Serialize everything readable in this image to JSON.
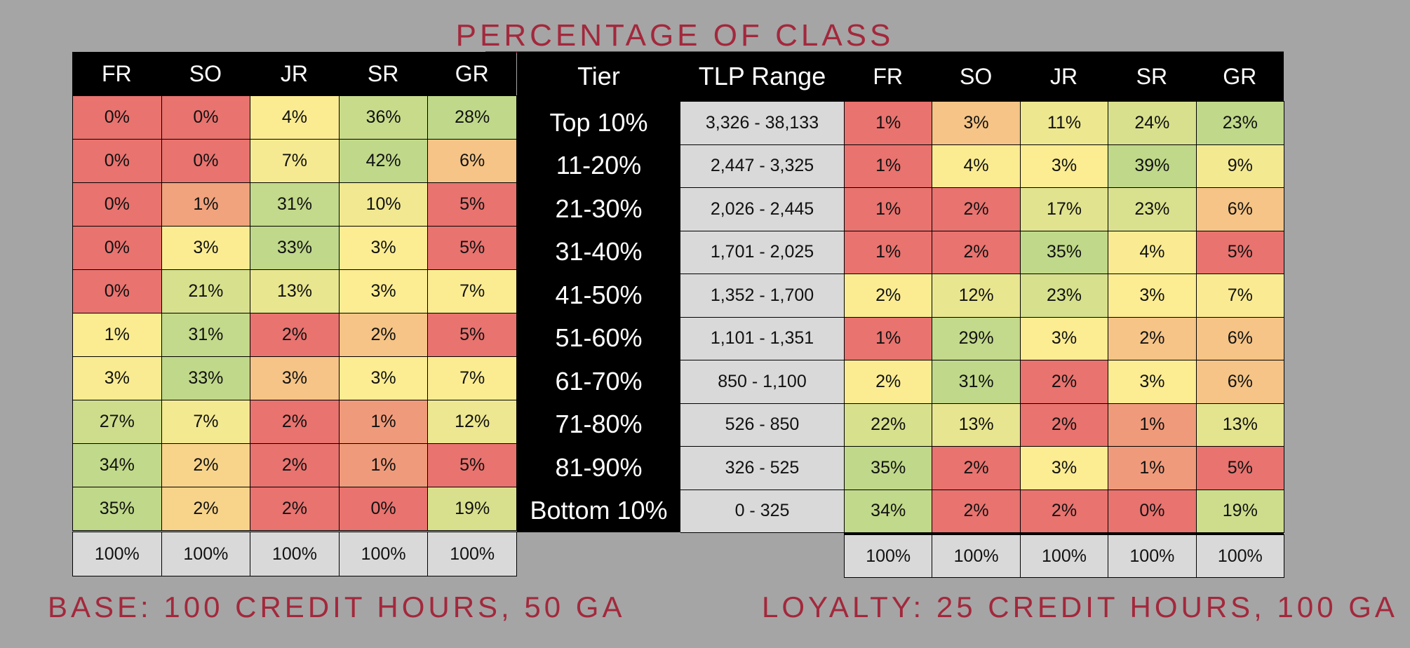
{
  "title": "PERCENTAGE OF CLASS",
  "tiers": {
    "header": [
      "Tier",
      "TLP Range"
    ],
    "rows": [
      [
        "Top 10%",
        "3,326 - 38,133"
      ],
      [
        "11-20%",
        "2,447 - 3,325"
      ],
      [
        "21-30%",
        "2,026 - 2,445"
      ],
      [
        "31-40%",
        "1,701 - 2,025"
      ],
      [
        "41-50%",
        "1,352 - 1,700"
      ],
      [
        "51-60%",
        "1,101 - 1,351"
      ],
      [
        "61-70%",
        "850 - 1,100"
      ],
      [
        "71-80%",
        "526 - 850"
      ],
      [
        "81-90%",
        "326 - 525"
      ],
      [
        "Bottom 10%",
        "0 - 325"
      ]
    ]
  },
  "base": {
    "caption": "BASE: 100 CREDIT HOURS, 50 GA",
    "header": [
      "FR",
      "SO",
      "JR",
      "SR",
      "GR"
    ],
    "rows": [
      [
        "0%",
        "0%",
        "4%",
        "36%",
        "28%"
      ],
      [
        "0%",
        "0%",
        "7%",
        "42%",
        "6%"
      ],
      [
        "0%",
        "1%",
        "31%",
        "10%",
        "5%"
      ],
      [
        "0%",
        "3%",
        "33%",
        "3%",
        "5%"
      ],
      [
        "0%",
        "21%",
        "13%",
        "3%",
        "7%"
      ],
      [
        "1%",
        "31%",
        "2%",
        "2%",
        "5%"
      ],
      [
        "3%",
        "33%",
        "3%",
        "3%",
        "7%"
      ],
      [
        "27%",
        "7%",
        "2%",
        "1%",
        "12%"
      ],
      [
        "34%",
        "2%",
        "2%",
        "1%",
        "5%"
      ],
      [
        "35%",
        "2%",
        "2%",
        "0%",
        "19%"
      ]
    ],
    "total": [
      "100%",
      "100%",
      "100%",
      "100%",
      "100%"
    ]
  },
  "loyalty": {
    "caption": "LOYALTY: 25 CREDIT HOURS, 100 GA",
    "header": [
      "FR",
      "SO",
      "JR",
      "SR",
      "GR"
    ],
    "rows": [
      [
        "1%",
        "3%",
        "11%",
        "24%",
        "23%"
      ],
      [
        "1%",
        "4%",
        "3%",
        "39%",
        "9%"
      ],
      [
        "1%",
        "2%",
        "17%",
        "23%",
        "6%"
      ],
      [
        "1%",
        "2%",
        "35%",
        "4%",
        "5%"
      ],
      [
        "2%",
        "12%",
        "23%",
        "3%",
        "7%"
      ],
      [
        "1%",
        "29%",
        "3%",
        "2%",
        "6%"
      ],
      [
        "2%",
        "31%",
        "2%",
        "3%",
        "6%"
      ],
      [
        "22%",
        "13%",
        "2%",
        "1%",
        "13%"
      ],
      [
        "35%",
        "2%",
        "3%",
        "1%",
        "5%"
      ],
      [
        "34%",
        "2%",
        "2%",
        "0%",
        "19%"
      ]
    ],
    "total": [
      "100%",
      "100%",
      "100%",
      "100%",
      "100%"
    ]
  }
}
